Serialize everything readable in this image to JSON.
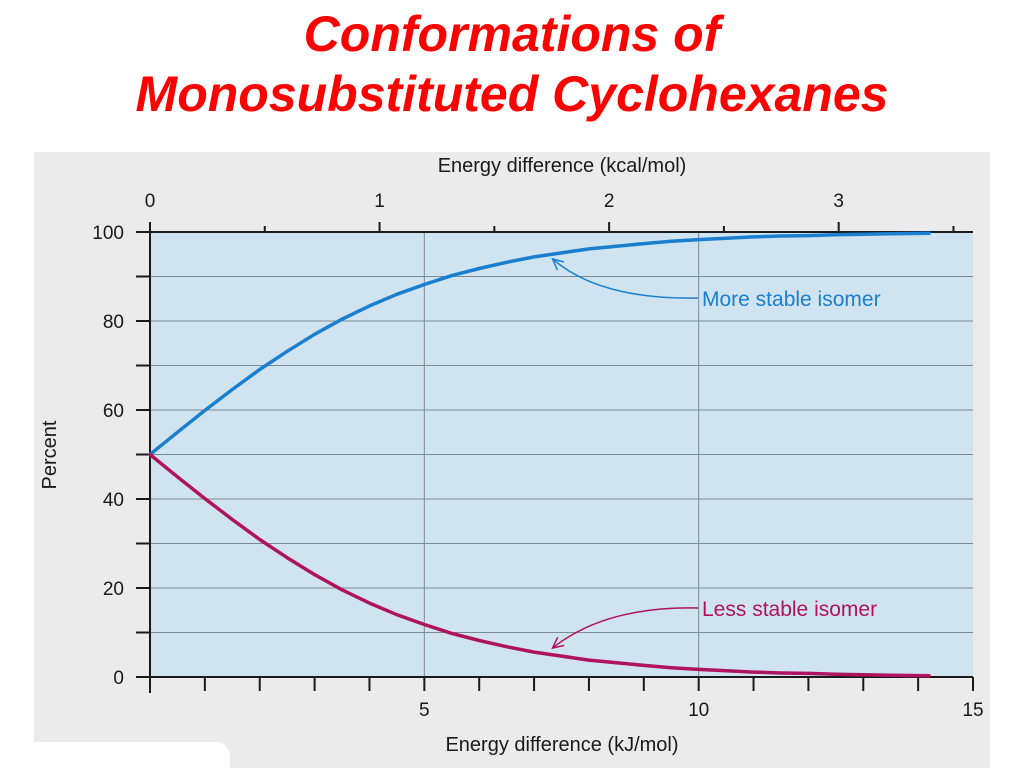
{
  "slide": {
    "title_line1": "Conformations of",
    "title_line2": "Monosubstituted Cyclohexanes"
  },
  "colors": {
    "title": "#ff0000",
    "plot_background": "#cfe3f0",
    "more_stable": "#1a7fcf",
    "less_stable": "#b0135e",
    "grid": "#7d8a94"
  },
  "chart_data": {
    "type": "line",
    "title": "",
    "xlabel": "Energy difference (kJ/mol)",
    "xlabel_top": "Energy difference (kcal/mol)",
    "ylabel": "Percent",
    "xlim": [
      0,
      15
    ],
    "ylim": [
      0,
      100
    ],
    "x_ticks": [
      5,
      10,
      15
    ],
    "x_ticks_top": [
      0,
      1,
      2,
      3
    ],
    "y_ticks": [
      0,
      20,
      40,
      60,
      80,
      100
    ],
    "grid": true,
    "x": [
      0,
      0.5,
      1,
      1.5,
      2,
      2.5,
      3,
      3.5,
      4,
      4.5,
      5,
      5.5,
      6,
      6.5,
      7,
      7.5,
      8,
      8.5,
      9,
      9.5,
      10,
      10.5,
      11,
      11.5,
      12,
      12.5,
      13,
      13.5,
      14.2
    ],
    "series": [
      {
        "name": "More stable isomer",
        "values": [
          50.0,
          55.0,
          59.9,
          64.6,
          69.1,
          73.2,
          77.0,
          80.4,
          83.4,
          86.0,
          88.2,
          90.2,
          91.8,
          93.2,
          94.4,
          95.3,
          96.2,
          96.8,
          97.4,
          97.9,
          98.3,
          98.6,
          98.9,
          99.1,
          99.2,
          99.4,
          99.5,
          99.6,
          99.7
        ]
      },
      {
        "name": "Less stable isomer",
        "values": [
          50.0,
          45.0,
          40.1,
          35.4,
          30.9,
          26.8,
          23.0,
          19.6,
          16.6,
          14.0,
          11.8,
          9.8,
          8.2,
          6.8,
          5.6,
          4.7,
          3.8,
          3.2,
          2.6,
          2.1,
          1.7,
          1.4,
          1.1,
          0.9,
          0.8,
          0.6,
          0.5,
          0.4,
          0.3
        ]
      }
    ],
    "annotations": [
      {
        "series": 0,
        "text": "More stable isomer",
        "points_to_x": 7.3
      },
      {
        "series": 1,
        "text": "Less stable isomer",
        "points_to_x": 7.3
      }
    ]
  }
}
